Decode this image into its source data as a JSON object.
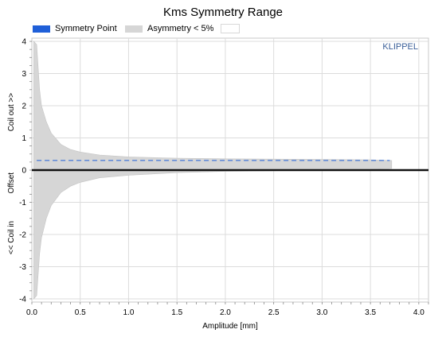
{
  "chart_data": {
    "type": "area",
    "title": "Kms Symmetry Range",
    "xlabel": "Amplitude [mm]",
    "ylabel_top": "Coil out >>",
    "ylabel_mid": "Offset",
    "ylabel_bottom": "<< Coil in",
    "brand": "KLIPPEL",
    "xlim": [
      0,
      4.1
    ],
    "ylim": [
      -4.1,
      4.1
    ],
    "x_ticks": [
      "0.0",
      "0.5",
      "1.0",
      "1.5",
      "2.0",
      "2.5",
      "3.0",
      "3.5",
      "4.0"
    ],
    "y_ticks": [
      "4",
      "3",
      "2",
      "1",
      "0",
      "-1",
      "-2",
      "-3",
      "-4"
    ],
    "grid": true,
    "legend_placement": "top",
    "series": [
      {
        "name": "Symmetry Point",
        "color": "#1f5fd8",
        "style": "dashed",
        "x": [
          0.05,
          0.5,
          1.0,
          1.5,
          2.0,
          2.5,
          3.0,
          3.5,
          3.7
        ],
        "y": [
          0.3,
          0.3,
          0.3,
          0.3,
          0.3,
          0.3,
          0.3,
          0.3,
          0.3
        ]
      },
      {
        "name": "Asymmetry < 5%",
        "color": "#d6d6d6",
        "x": [
          0.02,
          0.05,
          0.08,
          0.1,
          0.15,
          0.2,
          0.3,
          0.4,
          0.5,
          0.7,
          1.0,
          1.5,
          2.0,
          2.5,
          3.0,
          3.5,
          3.72
        ],
        "upper": [
          4.0,
          3.9,
          2.5,
          2.0,
          1.5,
          1.15,
          0.8,
          0.64,
          0.56,
          0.47,
          0.41,
          0.37,
          0.35,
          0.34,
          0.33,
          0.32,
          0.3
        ],
        "lower": [
          -4.0,
          -3.9,
          -2.6,
          -2.1,
          -1.5,
          -1.1,
          -0.7,
          -0.5,
          -0.38,
          -0.24,
          -0.16,
          -0.08,
          -0.04,
          -0.02,
          0.0,
          0.02,
          0.05
        ]
      }
    ],
    "offset_line": {
      "y": 0,
      "color": "#111111"
    },
    "legend_extra_blank": ""
  }
}
